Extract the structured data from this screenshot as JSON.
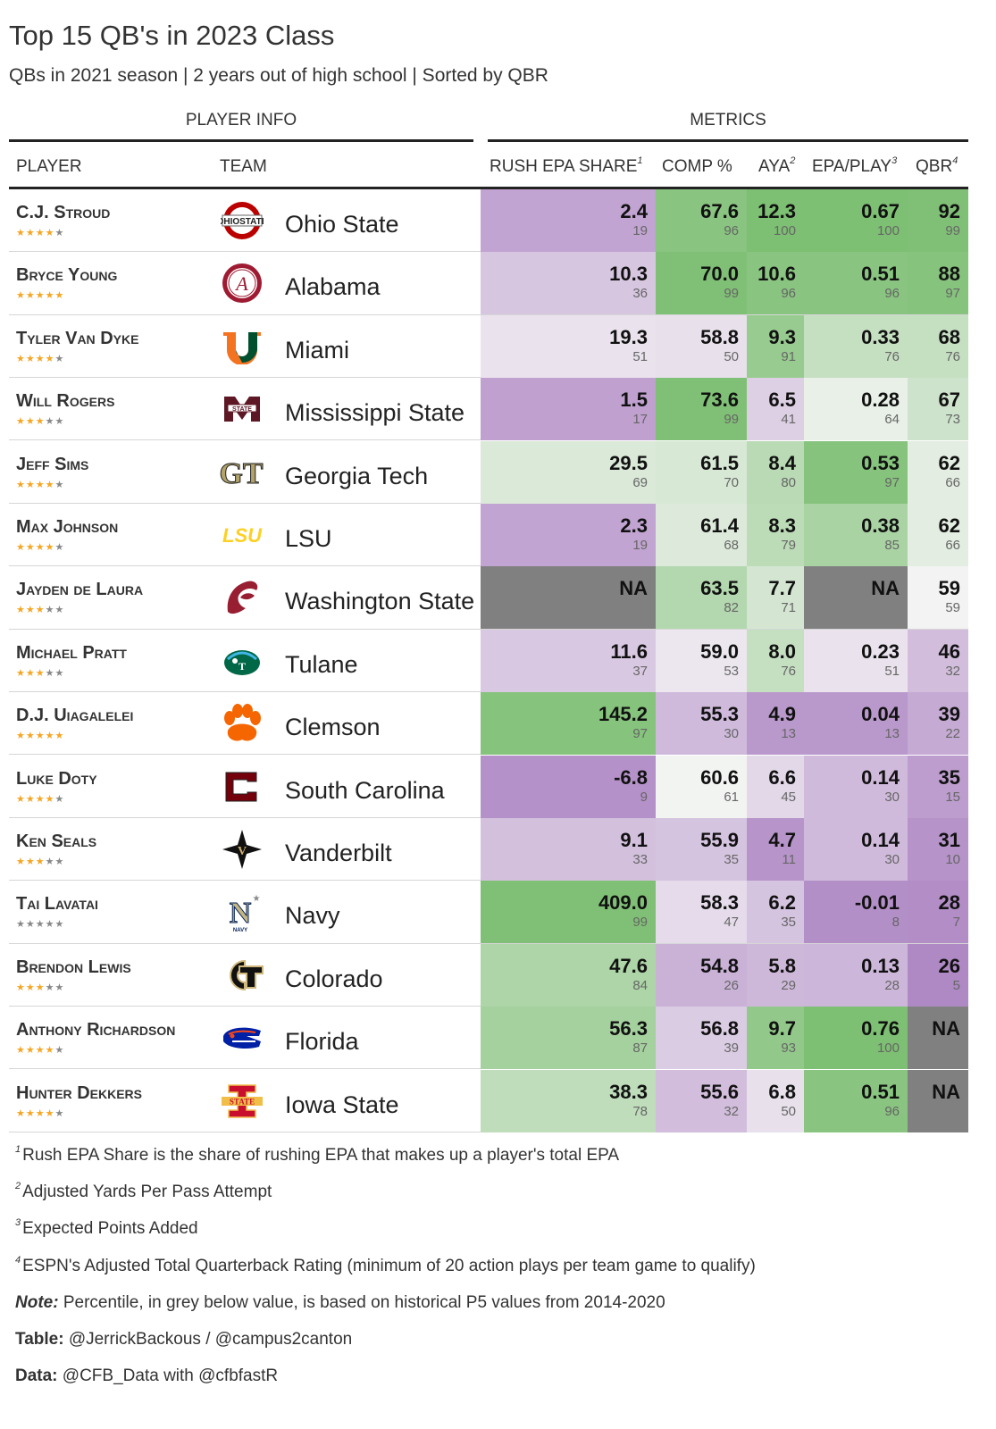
{
  "title": "Top 15 QB's in 2023 Class",
  "subtitle": "QBs in 2021 season | 2 years out of high school | Sorted by QBR",
  "spanners": {
    "player_info": "PLAYER INFO",
    "metrics": "METRICS"
  },
  "columns": {
    "player": "PLAYER",
    "team": "TEAM",
    "rush": "RUSH EPA SHARE",
    "rush_sup": "1",
    "comp": "COMP %",
    "aya": "AYA",
    "aya_sup": "2",
    "epa": "EPA/PLAY",
    "epa_sup": "3",
    "qbr": "QBR",
    "qbr_sup": "4"
  },
  "colors": {
    "star_on": "#f5a623",
    "star_off": "#888888",
    "na": "#808080",
    "scale_low": "#a97fc0",
    "scale_mid": "#f5f5f5",
    "scale_high": "#7dbf73"
  },
  "rows": [
    {
      "player": "C.J. Stroud",
      "stars": 4,
      "team": "Ohio State",
      "logo": "ohio-state-logo",
      "rush": {
        "v": "2.4",
        "p": "19"
      },
      "comp": {
        "v": "67.6",
        "p": "96"
      },
      "aya": {
        "v": "12.3",
        "p": "100"
      },
      "epa": {
        "v": "0.67",
        "p": "100"
      },
      "qbr": {
        "v": "92",
        "p": "99"
      }
    },
    {
      "player": "Bryce Young",
      "stars": 5,
      "team": "Alabama",
      "logo": "alabama-logo",
      "rush": {
        "v": "10.3",
        "p": "36"
      },
      "comp": {
        "v": "70.0",
        "p": "99"
      },
      "aya": {
        "v": "10.6",
        "p": "96"
      },
      "epa": {
        "v": "0.51",
        "p": "96"
      },
      "qbr": {
        "v": "88",
        "p": "97"
      }
    },
    {
      "player": "Tyler Van Dyke",
      "stars": 4,
      "team": "Miami",
      "logo": "miami-logo",
      "rush": {
        "v": "19.3",
        "p": "51"
      },
      "comp": {
        "v": "58.8",
        "p": "50"
      },
      "aya": {
        "v": "9.3",
        "p": "91"
      },
      "epa": {
        "v": "0.33",
        "p": "76"
      },
      "qbr": {
        "v": "68",
        "p": "76"
      }
    },
    {
      "player": "Will Rogers",
      "stars": 3,
      "team": "Mississippi State",
      "logo": "mississippi-state-logo",
      "rush": {
        "v": "1.5",
        "p": "17"
      },
      "comp": {
        "v": "73.6",
        "p": "99"
      },
      "aya": {
        "v": "6.5",
        "p": "41"
      },
      "epa": {
        "v": "0.28",
        "p": "64"
      },
      "qbr": {
        "v": "67",
        "p": "73"
      }
    },
    {
      "player": "Jeff Sims",
      "stars": 4,
      "team": "Georgia Tech",
      "logo": "georgia-tech-logo",
      "rush": {
        "v": "29.5",
        "p": "69"
      },
      "comp": {
        "v": "61.5",
        "p": "70"
      },
      "aya": {
        "v": "8.4",
        "p": "80"
      },
      "epa": {
        "v": "0.53",
        "p": "97"
      },
      "qbr": {
        "v": "62",
        "p": "66"
      }
    },
    {
      "player": "Max Johnson",
      "stars": 4,
      "team": "LSU",
      "logo": "lsu-logo",
      "rush": {
        "v": "2.3",
        "p": "19"
      },
      "comp": {
        "v": "61.4",
        "p": "68"
      },
      "aya": {
        "v": "8.3",
        "p": "79"
      },
      "epa": {
        "v": "0.38",
        "p": "85"
      },
      "qbr": {
        "v": "62",
        "p": "66"
      }
    },
    {
      "player": "Jayden de Laura",
      "stars": 3,
      "team": "Washington State",
      "logo": "washington-state-logo",
      "rush": {
        "v": "NA",
        "p": ""
      },
      "comp": {
        "v": "63.5",
        "p": "82"
      },
      "aya": {
        "v": "7.7",
        "p": "71"
      },
      "epa": {
        "v": "NA",
        "p": ""
      },
      "qbr": {
        "v": "59",
        "p": "59"
      }
    },
    {
      "player": "Michael Pratt",
      "stars": 3,
      "team": "Tulane",
      "logo": "tulane-logo",
      "rush": {
        "v": "11.6",
        "p": "37"
      },
      "comp": {
        "v": "59.0",
        "p": "53"
      },
      "aya": {
        "v": "8.0",
        "p": "76"
      },
      "epa": {
        "v": "0.23",
        "p": "51"
      },
      "qbr": {
        "v": "46",
        "p": "32"
      }
    },
    {
      "player": "D.J. Uiagalelei",
      "stars": 5,
      "team": "Clemson",
      "logo": "clemson-logo",
      "rush": {
        "v": "145.2",
        "p": "97"
      },
      "comp": {
        "v": "55.3",
        "p": "30"
      },
      "aya": {
        "v": "4.9",
        "p": "13"
      },
      "epa": {
        "v": "0.04",
        "p": "13"
      },
      "qbr": {
        "v": "39",
        "p": "22"
      }
    },
    {
      "player": "Luke Doty",
      "stars": 4,
      "team": "South Carolina",
      "logo": "south-carolina-logo",
      "rush": {
        "v": "-6.8",
        "p": "9"
      },
      "comp": {
        "v": "60.6",
        "p": "61"
      },
      "aya": {
        "v": "6.6",
        "p": "45"
      },
      "epa": {
        "v": "0.14",
        "p": "30"
      },
      "qbr": {
        "v": "35",
        "p": "15"
      }
    },
    {
      "player": "Ken Seals",
      "stars": 3,
      "team": "Vanderbilt",
      "logo": "vanderbilt-logo",
      "rush": {
        "v": "9.1",
        "p": "33"
      },
      "comp": {
        "v": "55.9",
        "p": "35"
      },
      "aya": {
        "v": "4.7",
        "p": "11"
      },
      "epa": {
        "v": "0.14",
        "p": "30"
      },
      "qbr": {
        "v": "31",
        "p": "10"
      }
    },
    {
      "player": "Tai Lavatai",
      "stars": 0,
      "team": "Navy",
      "logo": "navy-logo",
      "rush": {
        "v": "409.0",
        "p": "99"
      },
      "comp": {
        "v": "58.3",
        "p": "47"
      },
      "aya": {
        "v": "6.2",
        "p": "35"
      },
      "epa": {
        "v": "-0.01",
        "p": "8"
      },
      "qbr": {
        "v": "28",
        "p": "7"
      }
    },
    {
      "player": "Brendon Lewis",
      "stars": 3,
      "team": "Colorado",
      "logo": "colorado-logo",
      "rush": {
        "v": "47.6",
        "p": "84"
      },
      "comp": {
        "v": "54.8",
        "p": "26"
      },
      "aya": {
        "v": "5.8",
        "p": "29"
      },
      "epa": {
        "v": "0.13",
        "p": "28"
      },
      "qbr": {
        "v": "26",
        "p": "5"
      }
    },
    {
      "player": "Anthony Richardson",
      "stars": 4,
      "team": "Florida",
      "logo": "florida-logo",
      "rush": {
        "v": "56.3",
        "p": "87"
      },
      "comp": {
        "v": "56.8",
        "p": "39"
      },
      "aya": {
        "v": "9.7",
        "p": "93"
      },
      "epa": {
        "v": "0.76",
        "p": "100"
      },
      "qbr": {
        "v": "NA",
        "p": ""
      }
    },
    {
      "player": "Hunter Dekkers",
      "stars": 4,
      "team": "Iowa State",
      "logo": "iowa-state-logo",
      "rush": {
        "v": "38.3",
        "p": "78"
      },
      "comp": {
        "v": "55.6",
        "p": "32"
      },
      "aya": {
        "v": "6.8",
        "p": "50"
      },
      "epa": {
        "v": "0.51",
        "p": "96"
      },
      "qbr": {
        "v": "NA",
        "p": ""
      }
    }
  ],
  "footnotes": [
    {
      "num": "1",
      "text": "Rush EPA Share is the share of rushing EPA that makes up a player's total EPA"
    },
    {
      "num": "2",
      "text": "Adjusted Yards Per Pass Attempt"
    },
    {
      "num": "3",
      "text": "Expected Points Added"
    },
    {
      "num": "4",
      "text": "ESPN's Adjusted Total Quarterback Rating (minimum of 20 action plays per team game to qualify)"
    }
  ],
  "notes": [
    {
      "label": "Note:",
      "text": "Percentile, in grey below value, is based on historical P5 values from 2014-2020"
    },
    {
      "label": "Table:",
      "text": "@JerrickBackous / @campus2canton"
    },
    {
      "label": "Data:",
      "text": "@CFB_Data with @cfbfastR"
    }
  ]
}
